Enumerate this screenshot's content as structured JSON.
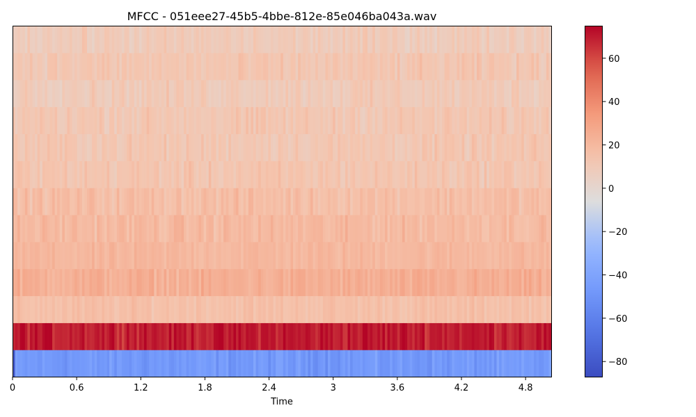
{
  "chart_data": {
    "type": "heatmap",
    "title": "MFCC - 051eee27-45b5-4bbe-812e-85e046ba043a.wav",
    "xlabel": "Time",
    "ylabel": "",
    "xlim": [
      0,
      5.04
    ],
    "x_ticks": [
      "0",
      "0.6",
      "1.2",
      "1.8",
      "2.4",
      "3",
      "3.6",
      "4.2",
      "4.8"
    ],
    "n_coefficients": 13,
    "n_frames": 217,
    "colormap": "coolwarm",
    "colorbar": {
      "range": [
        -87,
        75
      ],
      "ticks": [
        "60",
        "40",
        "20",
        "0",
        "−20",
        "−40",
        "−60",
        "−80"
      ]
    },
    "coefficient_means": [
      -47,
      70,
      16,
      24,
      20,
      19,
      17,
      13,
      12,
      12,
      10,
      12,
      9
    ],
    "coefficient_variation": [
      5,
      5,
      3,
      4,
      3,
      4,
      4,
      4,
      4,
      4,
      4,
      4,
      4
    ]
  }
}
